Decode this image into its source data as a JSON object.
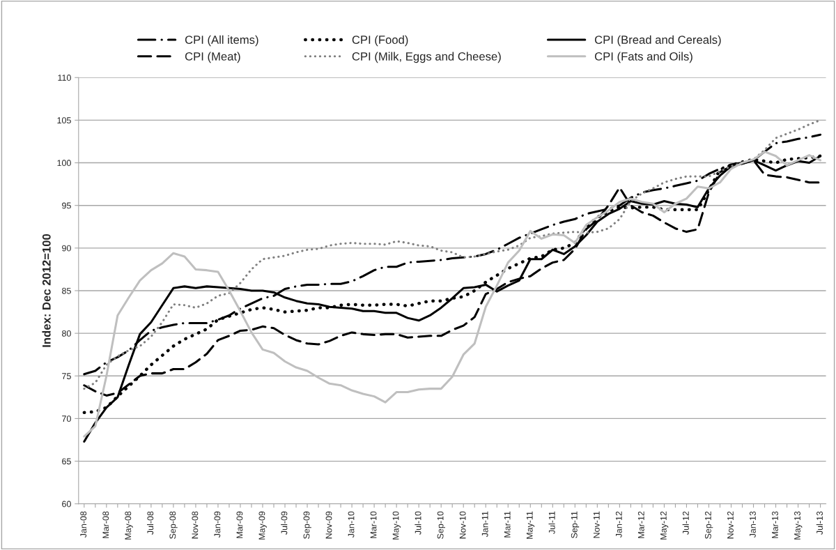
{
  "chart_data": {
    "type": "line",
    "ylabel": "Index: Dec 2012=100",
    "categories": [
      "Jan-08",
      null,
      "Mar-08",
      null,
      "May-08",
      null,
      "Jul-08",
      null,
      "Sep-08",
      null,
      "Nov-08",
      null,
      "Jan-09",
      null,
      "Mar-09",
      null,
      "May-09",
      null,
      "Jul-09",
      null,
      "Sep-09",
      null,
      "Nov-09",
      null,
      "Jan-10",
      null,
      "Mar-10",
      null,
      "May-10",
      null,
      "Jul-10",
      null,
      "Sep-10",
      null,
      "Nov-10",
      null,
      "Jan-11",
      null,
      "Mar-11",
      null,
      "May-11",
      null,
      "Jul-11",
      null,
      "Sep-11",
      null,
      "Nov-11",
      null,
      "Jan-12",
      null,
      "Mar-12",
      null,
      "May-12",
      null,
      "Jul-12",
      null,
      "Sep-12",
      null,
      "Nov-12",
      null,
      "Jan-13",
      null,
      "Mar-13",
      null,
      "May-13",
      null,
      "Jul-13"
    ],
    "ylim": [
      60,
      110
    ],
    "yticks": [
      60,
      65,
      70,
      75,
      80,
      85,
      90,
      95,
      100,
      105,
      110
    ],
    "grid": "y",
    "legend": "top",
    "marker": "none",
    "series": [
      {
        "name": "CPI (All items)",
        "color": "#000000",
        "line_style": "dashdot",
        "values": [
          75.2,
          75.6,
          76.6,
          77.2,
          78.0,
          79.2,
          80.3,
          80.7,
          81.0,
          81.2,
          81.2,
          81.2,
          81.6,
          82.1,
          82.9,
          83.5,
          84.1,
          84.4,
          85.2,
          85.5,
          85.7,
          85.7,
          85.8,
          85.8,
          86.1,
          86.7,
          87.4,
          87.8,
          87.8,
          88.3,
          88.4,
          88.5,
          88.6,
          88.8,
          88.9,
          89.0,
          89.3,
          89.8,
          90.5,
          91.2,
          91.7,
          92.2,
          92.7,
          93.1,
          93.4,
          94.0,
          94.3,
          94.6,
          95.0,
          95.9,
          96.5,
          96.8,
          97.0,
          97.3,
          97.6,
          97.9,
          98.7,
          99.3,
          99.8,
          100.0,
          100.3,
          101.3,
          102.3,
          102.5,
          102.8,
          103.0,
          103.3
        ]
      },
      {
        "name": "CPI (Food)",
        "color": "#000000",
        "line_style": "dotted",
        "values": [
          70.7,
          70.8,
          71.3,
          72.6,
          73.8,
          75.0,
          76.3,
          77.4,
          78.5,
          79.3,
          79.9,
          80.5,
          81.6,
          82.0,
          82.4,
          82.8,
          83.0,
          82.8,
          82.5,
          82.6,
          82.7,
          83.0,
          83.0,
          83.3,
          83.4,
          83.3,
          83.3,
          83.4,
          83.4,
          83.2,
          83.5,
          83.8,
          83.8,
          84.1,
          84.3,
          85.0,
          86.0,
          86.8,
          87.6,
          88.2,
          88.8,
          89.0,
          89.8,
          90.0,
          90.6,
          92.5,
          93.6,
          94.3,
          94.8,
          94.7,
          94.8,
          94.8,
          94.5,
          94.5,
          94.5,
          94.5,
          96.8,
          99.2,
          99.7,
          100.1,
          100.4,
          100.2,
          100.0,
          100.4,
          100.5,
          100.6,
          100.8
        ]
      },
      {
        "name": "CPI (Bread and Cereals)",
        "color": "#000000",
        "line_style": "solid",
        "values": [
          67.3,
          69.5,
          71.3,
          72.5,
          76.3,
          79.9,
          81.3,
          83.3,
          85.3,
          85.5,
          85.3,
          85.5,
          85.4,
          85.3,
          85.2,
          85.0,
          85.0,
          84.8,
          84.2,
          83.8,
          83.5,
          83.4,
          83.1,
          83.0,
          82.9,
          82.6,
          82.6,
          82.4,
          82.4,
          81.8,
          81.5,
          82.1,
          83.0,
          84.1,
          85.3,
          85.4,
          85.7,
          84.9,
          85.6,
          86.2,
          88.7,
          88.7,
          89.8,
          89.3,
          90.2,
          91.5,
          93.1,
          94.0,
          94.6,
          95.5,
          95.2,
          95.1,
          95.5,
          95.2,
          95.1,
          94.8,
          97.0,
          98.5,
          99.6,
          99.9,
          100.3,
          99.7,
          99.1,
          99.7,
          100.2,
          100.0,
          100.8
        ]
      },
      {
        "name": "CPI (Meat)",
        "color": "#000000",
        "line_style": "dashed",
        "values": [
          73.9,
          73.2,
          72.7,
          73.0,
          74.0,
          75.0,
          75.3,
          75.3,
          75.8,
          75.8,
          76.6,
          77.6,
          79.2,
          79.7,
          80.3,
          80.4,
          80.8,
          80.6,
          79.8,
          79.2,
          78.8,
          78.7,
          79.1,
          79.7,
          80.1,
          79.9,
          79.8,
          79.9,
          79.9,
          79.5,
          79.6,
          79.7,
          79.7,
          80.4,
          80.9,
          81.9,
          84.6,
          85.2,
          86.0,
          86.4,
          86.7,
          87.6,
          88.3,
          88.6,
          89.9,
          92.2,
          93.3,
          95.0,
          97.1,
          95.0,
          94.2,
          93.8,
          93.0,
          92.3,
          91.9,
          92.2,
          96.5,
          98.9,
          99.6,
          99.9,
          100.3,
          98.6,
          98.4,
          98.3,
          98.0,
          97.7,
          97.7
        ]
      },
      {
        "name": "CPI (Milk, Eggs and Cheese)",
        "color": "#808080",
        "line_style": "dotted",
        "values": [
          73.5,
          74.2,
          76.3,
          77.3,
          78.0,
          78.5,
          79.6,
          81.3,
          83.4,
          83.3,
          83.0,
          83.5,
          84.4,
          84.7,
          85.9,
          87.5,
          88.7,
          88.9,
          89.1,
          89.5,
          89.8,
          89.9,
          90.3,
          90.5,
          90.6,
          90.5,
          90.5,
          90.4,
          90.8,
          90.6,
          90.3,
          90.2,
          89.7,
          89.5,
          88.9,
          89.0,
          89.3,
          89.6,
          89.8,
          90.3,
          91.2,
          91.4,
          91.7,
          91.8,
          91.9,
          91.8,
          91.9,
          92.3,
          93.4,
          95.5,
          96.4,
          97.0,
          97.7,
          98.1,
          98.4,
          98.4,
          98.4,
          99.0,
          99.6,
          100.0,
          100.4,
          101.5,
          102.9,
          103.4,
          103.9,
          104.5,
          105.0
        ]
      },
      {
        "name": "CPI (Fats and Oils)",
        "color": "#bfbfbf",
        "line_style": "solid",
        "values": [
          67.9,
          69.1,
          75.0,
          82.1,
          84.2,
          86.2,
          87.4,
          88.2,
          89.4,
          89.0,
          87.5,
          87.4,
          87.2,
          85.0,
          82.6,
          80.1,
          78.1,
          77.7,
          76.7,
          76.0,
          75.6,
          74.8,
          74.1,
          73.9,
          73.3,
          72.9,
          72.6,
          71.9,
          73.1,
          73.1,
          73.4,
          73.5,
          73.5,
          74.9,
          77.5,
          78.8,
          83.1,
          85.6,
          88.3,
          89.7,
          92.0,
          91.1,
          91.6,
          91.5,
          90.6,
          92.7,
          93.6,
          94.4,
          95.4,
          95.8,
          95.4,
          95.2,
          94.2,
          95.2,
          95.8,
          97.2,
          97.0,
          97.7,
          99.3,
          100.0,
          100.4,
          101.3,
          100.8,
          99.7,
          100.3,
          100.9,
          100.3
        ]
      }
    ]
  }
}
